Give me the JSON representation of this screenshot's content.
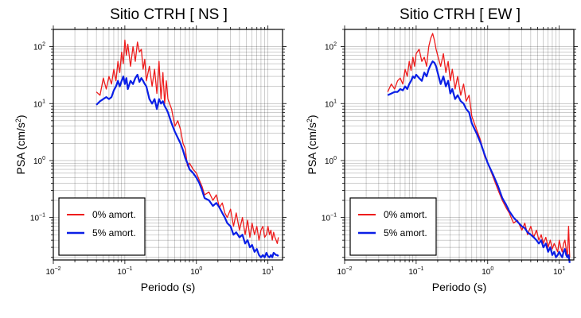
{
  "chart_data": [
    {
      "type": "line",
      "title": "Sitio CTRH [ NS ]",
      "xlabel": "Periodo (s)",
      "ylabel_main": "PSA (cm/s",
      "ylabel_sup": "2",
      "ylabel_tail": ")",
      "x_scale": "log",
      "y_scale": "log",
      "xlim": [
        0.01,
        16
      ],
      "ylim": [
        0.018,
        200
      ],
      "x_ticks": [
        {
          "base": "10",
          "exp": "−2",
          "value": 0.01
        },
        {
          "base": "10",
          "exp": "−1",
          "value": 0.1
        },
        {
          "base": "10",
          "exp": "0",
          "value": 1
        },
        {
          "base": "10",
          "exp": "1",
          "value": 10
        }
      ],
      "y_ticks": [
        {
          "base": "10",
          "exp": "−1",
          "value": 0.1
        },
        {
          "base": "10",
          "exp": "0",
          "value": 1
        },
        {
          "base": "10",
          "exp": "1",
          "value": 10
        },
        {
          "base": "10",
          "exp": "2",
          "value": 100
        }
      ],
      "grid": true,
      "legend_position": "bottom-left",
      "series": [
        {
          "name": "0% amort.",
          "color": "#ee1c1c",
          "x": [
            0.04,
            0.045,
            0.05,
            0.055,
            0.06,
            0.065,
            0.07,
            0.075,
            0.08,
            0.085,
            0.09,
            0.095,
            0.1,
            0.105,
            0.11,
            0.12,
            0.13,
            0.14,
            0.15,
            0.16,
            0.17,
            0.18,
            0.19,
            0.2,
            0.22,
            0.24,
            0.26,
            0.28,
            0.3,
            0.32,
            0.34,
            0.36,
            0.38,
            0.4,
            0.45,
            0.5,
            0.55,
            0.6,
            0.65,
            0.7,
            0.75,
            0.8,
            0.9,
            1.0,
            1.1,
            1.2,
            1.3,
            1.5,
            1.7,
            1.9,
            2.1,
            2.3,
            2.5,
            2.7,
            3.0,
            3.3,
            3.6,
            4.0,
            4.4,
            4.8,
            5.2,
            5.6,
            6.0,
            6.5,
            7.0,
            7.5,
            8.0,
            8.5,
            9.0,
            9.5,
            10.0,
            10.5,
            11.0,
            11.5,
            12.0,
            12.5,
            13.0,
            13.5,
            14.0
          ],
          "y": [
            16,
            14,
            28,
            18,
            30,
            22,
            40,
            25,
            55,
            35,
            80,
            50,
            130,
            70,
            110,
            45,
            100,
            55,
            120,
            80,
            90,
            40,
            60,
            25,
            45,
            20,
            40,
            15,
            55,
            12,
            35,
            10,
            25,
            12,
            8,
            4,
            5,
            3.5,
            2,
            1.6,
            0.8,
            0.9,
            0.7,
            0.6,
            0.45,
            0.35,
            0.25,
            0.28,
            0.2,
            0.25,
            0.15,
            0.18,
            0.12,
            0.1,
            0.14,
            0.07,
            0.12,
            0.06,
            0.1,
            0.05,
            0.09,
            0.045,
            0.08,
            0.05,
            0.07,
            0.04,
            0.06,
            0.07,
            0.045,
            0.05,
            0.07,
            0.05,
            0.06,
            0.04,
            0.055,
            0.045,
            0.04,
            0.035,
            0.045
          ]
        },
        {
          "name": "5% amort.",
          "color": "#0a1fe6",
          "x": [
            0.04,
            0.045,
            0.05,
            0.055,
            0.06,
            0.065,
            0.07,
            0.075,
            0.08,
            0.085,
            0.09,
            0.095,
            0.1,
            0.105,
            0.11,
            0.12,
            0.13,
            0.14,
            0.15,
            0.16,
            0.17,
            0.18,
            0.19,
            0.2,
            0.22,
            0.24,
            0.26,
            0.28,
            0.3,
            0.32,
            0.34,
            0.36,
            0.38,
            0.4,
            0.45,
            0.5,
            0.55,
            0.6,
            0.65,
            0.7,
            0.75,
            0.8,
            0.9,
            1.0,
            1.1,
            1.2,
            1.3,
            1.5,
            1.7,
            1.9,
            2.1,
            2.3,
            2.5,
            2.7,
            3.0,
            3.3,
            3.6,
            4.0,
            4.4,
            4.8,
            5.2,
            5.6,
            6.0,
            6.5,
            7.0,
            7.5,
            8.0,
            8.5,
            9.0,
            9.5,
            10.0,
            10.5,
            11.0,
            11.5,
            12.0,
            12.5,
            13.0,
            13.5,
            14.0
          ],
          "y": [
            9.5,
            11,
            12,
            13,
            12,
            13,
            17,
            20,
            25,
            20,
            25,
            30,
            22,
            28,
            18,
            25,
            22,
            28,
            32,
            24,
            28,
            25,
            22,
            20,
            12,
            10,
            12,
            8,
            12,
            10,
            11,
            9,
            8,
            7,
            4.5,
            3.2,
            2.5,
            2,
            1.5,
            1.1,
            0.9,
            0.7,
            0.6,
            0.5,
            0.4,
            0.3,
            0.22,
            0.2,
            0.16,
            0.18,
            0.15,
            0.12,
            0.1,
            0.08,
            0.07,
            0.05,
            0.055,
            0.045,
            0.05,
            0.035,
            0.04,
            0.03,
            0.033,
            0.025,
            0.028,
            0.022,
            0.02,
            0.022,
            0.02,
            0.024,
            0.021,
            0.02,
            0.022,
            0.02,
            0.024,
            0.023,
            0.022,
            0.022,
            0.021
          ]
        }
      ]
    },
    {
      "type": "line",
      "title": "Sitio CTRH [ EW ]",
      "xlabel": "Periodo (s)",
      "ylabel_main": "PSA (cm/s",
      "ylabel_sup": "2",
      "ylabel_tail": ")",
      "x_scale": "log",
      "y_scale": "log",
      "xlim": [
        0.01,
        16
      ],
      "ylim": [
        0.018,
        200
      ],
      "x_ticks": [
        {
          "base": "10",
          "exp": "−2",
          "value": 0.01
        },
        {
          "base": "10",
          "exp": "−1",
          "value": 0.1
        },
        {
          "base": "10",
          "exp": "0",
          "value": 1
        },
        {
          "base": "10",
          "exp": "1",
          "value": 10
        }
      ],
      "y_ticks": [
        {
          "base": "10",
          "exp": "−1",
          "value": 0.1
        },
        {
          "base": "10",
          "exp": "0",
          "value": 1
        },
        {
          "base": "10",
          "exp": "1",
          "value": 10
        },
        {
          "base": "10",
          "exp": "2",
          "value": 100
        }
      ],
      "grid": true,
      "legend_position": "bottom-left",
      "series": [
        {
          "name": "0% amort.",
          "color": "#ee1c1c",
          "x": [
            0.04,
            0.045,
            0.05,
            0.055,
            0.06,
            0.065,
            0.07,
            0.075,
            0.08,
            0.085,
            0.09,
            0.095,
            0.1,
            0.11,
            0.12,
            0.13,
            0.14,
            0.15,
            0.16,
            0.17,
            0.18,
            0.19,
            0.2,
            0.22,
            0.24,
            0.26,
            0.28,
            0.3,
            0.32,
            0.35,
            0.38,
            0.42,
            0.46,
            0.5,
            0.55,
            0.6,
            0.7,
            0.8,
            0.9,
            1.0,
            1.2,
            1.4,
            1.6,
            1.8,
            2.0,
            2.3,
            2.6,
            3.0,
            3.3,
            3.6,
            4.0,
            4.4,
            4.8,
            5.2,
            5.6,
            6.0,
            6.5,
            7.0,
            7.5,
            8.0,
            8.5,
            9.0,
            9.5,
            10.0,
            10.5,
            11.0,
            11.5,
            12.0,
            12.5,
            13.0,
            13.5,
            14.0
          ],
          "y": [
            16,
            22,
            18,
            25,
            28,
            22,
            40,
            30,
            55,
            38,
            65,
            45,
            75,
            90,
            55,
            65,
            45,
            100,
            140,
            170,
            130,
            90,
            70,
            45,
            75,
            35,
            55,
            25,
            40,
            18,
            30,
            14,
            22,
            11,
            14,
            6,
            3.5,
            2.2,
            1.2,
            0.9,
            0.5,
            0.3,
            0.2,
            0.15,
            0.12,
            0.08,
            0.09,
            0.06,
            0.08,
            0.05,
            0.07,
            0.045,
            0.06,
            0.04,
            0.05,
            0.035,
            0.045,
            0.03,
            0.04,
            0.028,
            0.035,
            0.03,
            0.025,
            0.04,
            0.03,
            0.025,
            0.035,
            0.04,
            0.028,
            0.02,
            0.07,
            0.02
          ]
        },
        {
          "name": "5% amort.",
          "color": "#0a1fe6",
          "x": [
            0.04,
            0.045,
            0.05,
            0.055,
            0.06,
            0.065,
            0.07,
            0.075,
            0.08,
            0.085,
            0.09,
            0.095,
            0.1,
            0.11,
            0.12,
            0.13,
            0.14,
            0.15,
            0.16,
            0.17,
            0.18,
            0.19,
            0.2,
            0.22,
            0.24,
            0.26,
            0.28,
            0.3,
            0.32,
            0.35,
            0.38,
            0.42,
            0.46,
            0.5,
            0.55,
            0.6,
            0.7,
            0.8,
            0.9,
            1.0,
            1.2,
            1.4,
            1.6,
            1.8,
            2.0,
            2.3,
            2.6,
            3.0,
            3.3,
            3.6,
            4.0,
            4.4,
            4.8,
            5.2,
            5.6,
            6.0,
            6.5,
            7.0,
            7.5,
            8.0,
            8.5,
            9.0,
            9.5,
            10.0,
            10.5,
            11.0,
            11.5,
            12.0,
            12.5,
            13.0,
            13.5,
            14.0
          ],
          "y": [
            14,
            15,
            16,
            16,
            18,
            17,
            20,
            18,
            22,
            25,
            30,
            28,
            32,
            28,
            25,
            35,
            30,
            40,
            48,
            55,
            52,
            45,
            35,
            22,
            30,
            20,
            25,
            15,
            18,
            12,
            14,
            11,
            10,
            8,
            7,
            4.5,
            3,
            2,
            1.3,
            0.9,
            0.55,
            0.35,
            0.22,
            0.17,
            0.13,
            0.1,
            0.085,
            0.07,
            0.065,
            0.055,
            0.05,
            0.045,
            0.04,
            0.035,
            0.04,
            0.03,
            0.035,
            0.025,
            0.03,
            0.022,
            0.025,
            0.02,
            0.022,
            0.025,
            0.022,
            0.02,
            0.025,
            0.028,
            0.022,
            0.02,
            0.022,
            0.016
          ]
        }
      ]
    }
  ]
}
